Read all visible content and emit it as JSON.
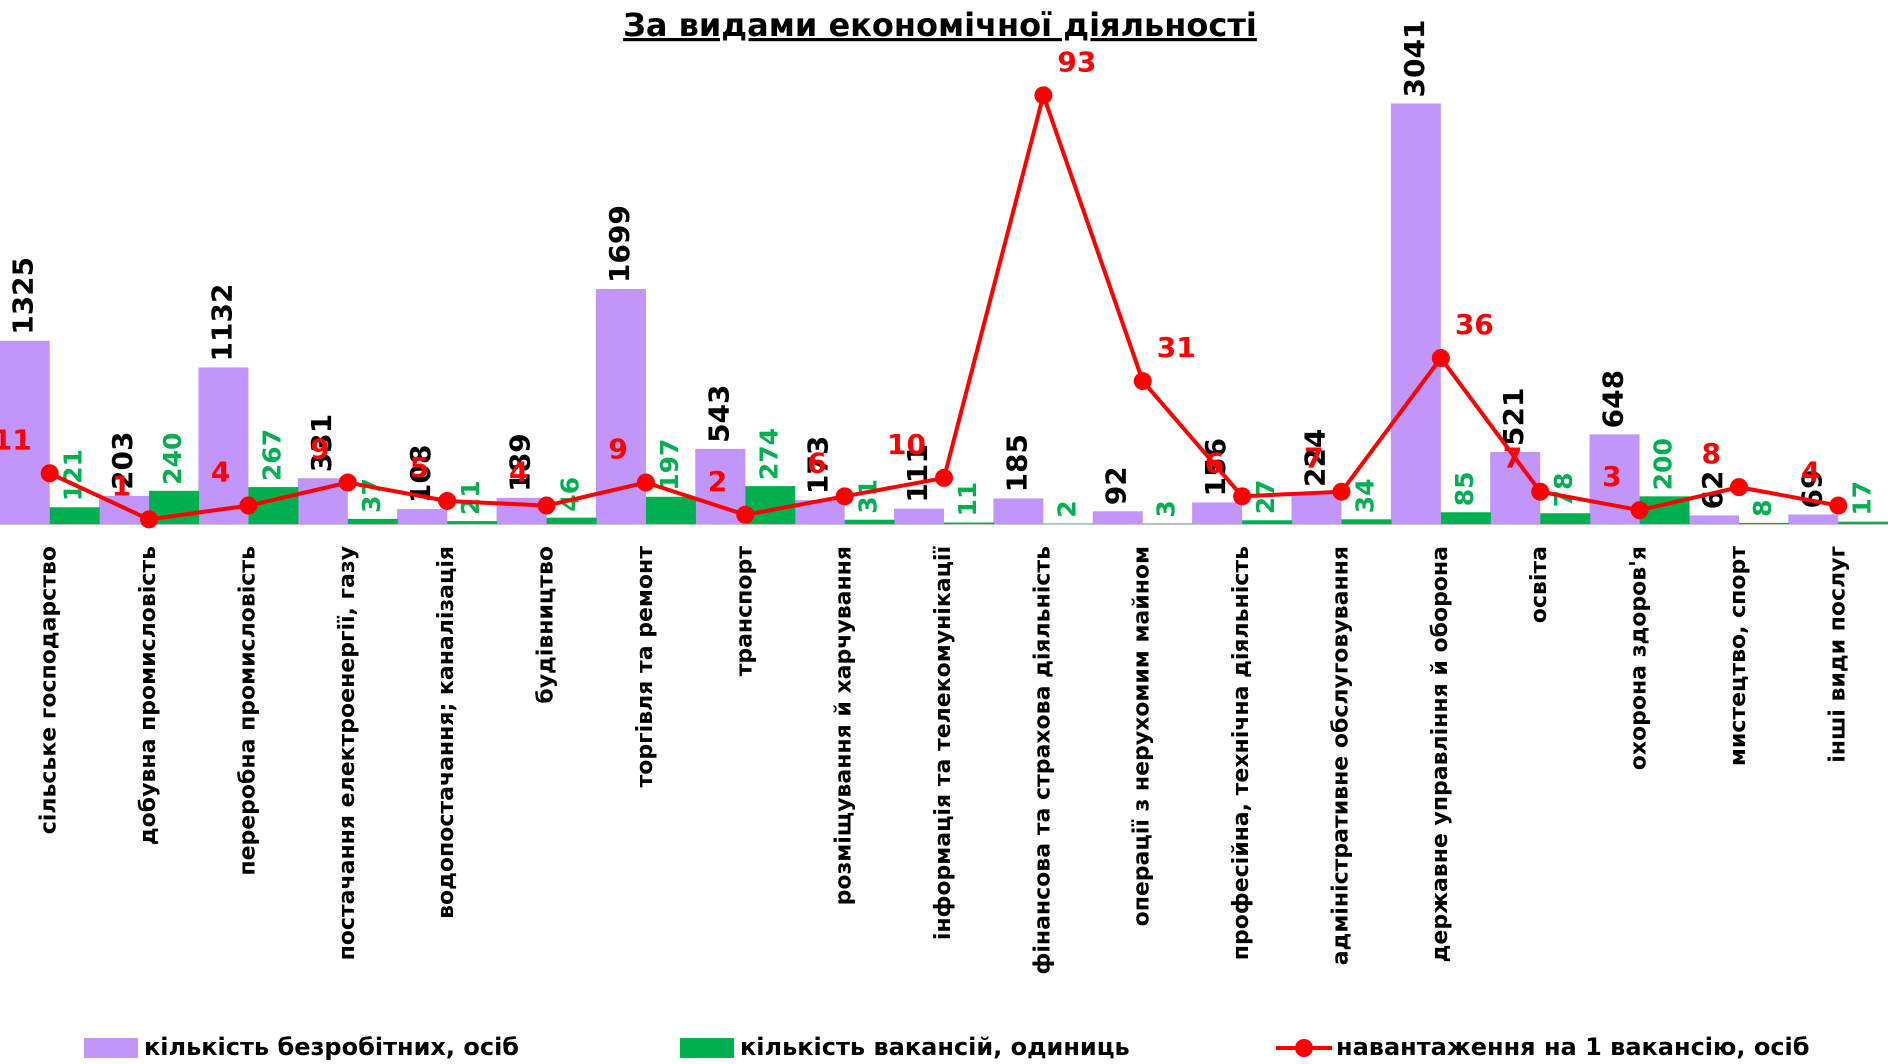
{
  "chart_data": {
    "type": "bar",
    "title": "За видами економічної діяльності",
    "categories": [
      "сільське господарство",
      "добувна промисловість",
      "переробна промисловість",
      "постачання електроенергії, газу",
      "водопостачання; каналізація",
      "будівництво",
      "торгівля та ремонт",
      "транспорт",
      "розміщування й харчування",
      "інформація та телекомунікації",
      "фінансова та страхова діяльність",
      "операції з нерухомим майном",
      "професійна, технічна діяльність",
      "адміністративне  обслуговування",
      "державне управління й оборона",
      "освіта",
      "охорона здоров'я",
      "мистецтво, спорт",
      "інші види послуг"
    ],
    "series": [
      {
        "name": "кількість безробітних,  осіб",
        "color": "#c195f9",
        "type": "bar",
        "values": [
          1325,
          203,
          1132,
          331,
          108,
          189,
          1699,
          543,
          173,
          111,
          185,
          92,
          156,
          224,
          3041,
          521,
          648,
          62,
          69
        ]
      },
      {
        "name": "кількість вакансій, одиниць",
        "color": "#00b050",
        "type": "bar",
        "values": [
          121,
          240,
          267,
          37,
          21,
          46,
          197,
          274,
          31,
          11,
          2,
          3,
          27,
          34,
          85,
          78,
          200,
          8,
          17
        ]
      },
      {
        "name": "навантаження на 1 вакансію, осіб",
        "color": "#ff0000",
        "type": "line",
        "axis": "y2",
        "values": [
          11,
          1,
          4,
          9,
          5,
          4,
          9,
          2,
          6,
          10,
          93,
          31,
          6,
          7,
          36,
          7,
          3,
          8,
          4
        ]
      }
    ],
    "ylim": [
      0,
      3500
    ],
    "y2lim": [
      0,
      105
    ]
  }
}
